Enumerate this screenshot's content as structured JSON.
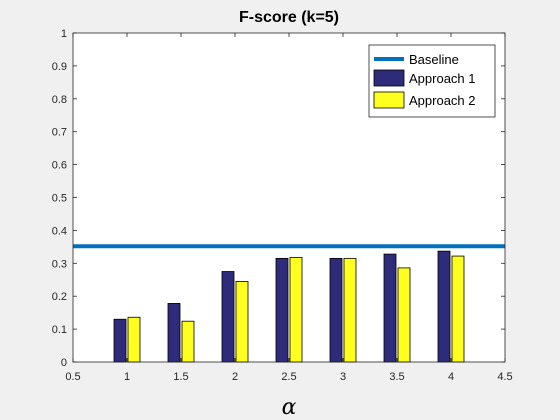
{
  "figure": {
    "background": "#f0f0f0"
  },
  "chart_data": {
    "type": "bar",
    "title": "F-score (k=5)",
    "xlabel": "α",
    "ylabel": "",
    "xlim": [
      0.5,
      4.5
    ],
    "ylim": [
      0,
      1
    ],
    "xticks": [
      0.5,
      1,
      1.5,
      2,
      2.5,
      3,
      3.5,
      4,
      4.5
    ],
    "xtick_labels": [
      "0.5",
      "1",
      "1.5",
      "2",
      "2.5",
      "3",
      "3.5",
      "4",
      "4.5"
    ],
    "yticks": [
      0,
      0.1,
      0.2,
      0.3,
      0.4,
      0.5,
      0.6,
      0.7,
      0.8,
      0.9,
      1
    ],
    "ytick_labels": [
      "0",
      "0.1",
      "0.2",
      "0.3",
      "0.4",
      "0.5",
      "0.6",
      "0.7",
      "0.8",
      "0.9",
      "1"
    ],
    "grid": false,
    "legend_position": "top-right",
    "x": [
      1,
      1.5,
      2,
      2.5,
      3,
      3.5,
      4
    ],
    "baseline": {
      "name": "Baseline",
      "value": 0.352,
      "color": "#0072bd"
    },
    "series": [
      {
        "name": "Approach 1",
        "color": "#2e2b7a",
        "values": [
          0.13,
          0.178,
          0.275,
          0.315,
          0.315,
          0.328,
          0.337
        ]
      },
      {
        "name": "Approach 2",
        "color": "#ffff1f",
        "values": [
          0.136,
          0.124,
          0.245,
          0.318,
          0.315,
          0.286,
          0.322
        ]
      }
    ]
  }
}
